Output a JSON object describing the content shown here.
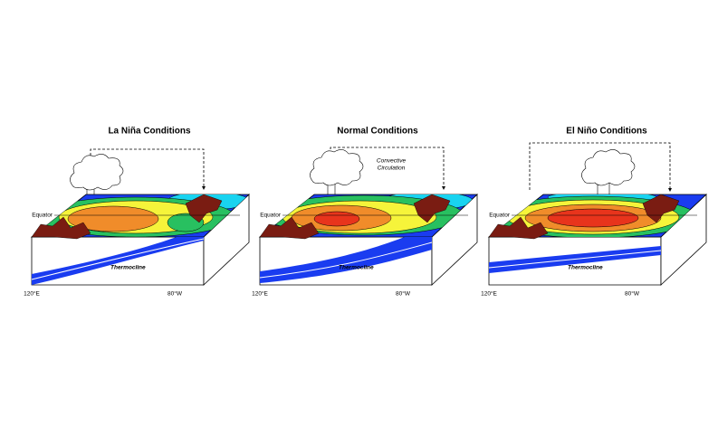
{
  "panels": [
    {
      "title": "La Niña Conditions",
      "equator": "Equator",
      "thermocline": "Thermocline",
      "west": "120°E",
      "east": "80°W"
    },
    {
      "title": "Normal Conditions",
      "equator": "Equator",
      "thermocline": "Thermocline",
      "west": "120°E",
      "east": "80°W",
      "note": [
        "Convective",
        "Circulation"
      ]
    },
    {
      "title": "El Niño Conditions",
      "equator": "Equator",
      "thermocline": "Thermocline",
      "west": "120°E",
      "east": "80°W"
    }
  ]
}
